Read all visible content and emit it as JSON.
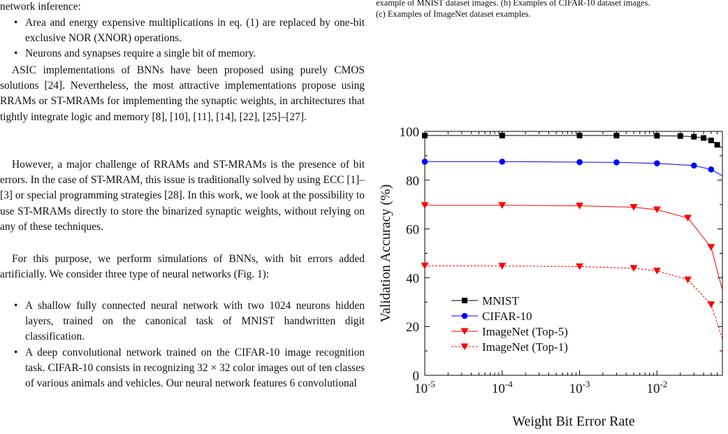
{
  "left_column": {
    "intro_tail": "network inference:",
    "bullets_1": [
      "Area and energy expensive multiplications in eq. (1) are replaced by one-bit exclusive NOR (XNOR) operations.",
      "Neurons and synapses require a single bit of memory."
    ],
    "para_asic": "ASIC implementations of BNNs have been proposed using purely CMOS solutions [24]. Nevertheless, the most attractive implementations propose using RRAMs or ST-MRAMs for implementing the synaptic weights, in architectures that tightly integrate logic and memory [8], [10], [11], [14], [22], [25]–[27].",
    "para_challenge": "However, a major challenge of RRAMs and ST-MRAMs is the presence of bit errors. In the case of ST-MRAM, this issue is traditionally solved by using ECC [1]–[3] or special programming strategies [28]. In this work, we look at the possibility to use ST-MRAMs directly to store the binarized synaptic weights, without relying on any of these techniques.",
    "para_purpose": "For this purpose, we perform simulations of BNNs, with bit errors added artificially. We consider three type of neural networks (Fig. 1):",
    "bullets_2": [
      "A shallow fully connected neural network with two 1024 neurons hidden layers, trained on the canonical task of MNIST handwritten digit classification.",
      "A deep convolutional network trained on the CIFAR-10 image recognition task. CIFAR-10 consists in recognizing 32 × 32 color images out of ten classes of various animals and vehicles. Our neural network features 6 convolutional"
    ]
  },
  "right_column": {
    "caption_line1": "example of MNIST dataset images. (b) Examples of CIFAR-10 dataset images.",
    "caption_line2": "(c) Examples of ImageNet dataset examples."
  },
  "chart_data": {
    "type": "line",
    "xlabel": "Weight Bit Error Rate",
    "ylabel": "Validation Accuracy (%)",
    "xscale": "log",
    "xlim": [
      1e-05,
      0.07
    ],
    "ylim": [
      0,
      100
    ],
    "x_ticks": [
      {
        "base": "10",
        "exp": "-5",
        "value": 1e-05
      },
      {
        "base": "10",
        "exp": "-4",
        "value": 0.0001
      },
      {
        "base": "10",
        "exp": "-3",
        "value": 0.001
      },
      {
        "base": "10",
        "exp": "-2",
        "value": 0.01
      }
    ],
    "y_ticks": [
      "0",
      "20",
      "40",
      "60",
      "80",
      "100"
    ],
    "legend_position": "bottom-left",
    "series": [
      {
        "name": "MNIST",
        "color": "#000000",
        "marker": "square",
        "dashed": false,
        "x": [
          1e-05,
          0.0001,
          0.001,
          0.003,
          0.01,
          0.02,
          0.03,
          0.04,
          0.05,
          0.06
        ],
        "y": [
          98.3,
          98.3,
          98.3,
          98.3,
          98.2,
          98.1,
          97.8,
          97.3,
          96.3,
          94.5
        ],
        "tail": {
          "x": 0.07,
          "y": 93.2
        }
      },
      {
        "name": "CIFAR-10",
        "color": "#0000ff",
        "marker": "circle",
        "dashed": false,
        "x": [
          1e-05,
          0.0001,
          0.001,
          0.003,
          0.01,
          0.03,
          0.05
        ],
        "y": [
          87.6,
          87.6,
          87.4,
          87.3,
          86.9,
          86.0,
          84.4
        ],
        "tail": {
          "x": 0.07,
          "y": 81.8
        }
      },
      {
        "name": "ImageNet (Top-5)",
        "color": "#ff0000",
        "marker": "triangle-down",
        "dashed": false,
        "x": [
          1e-05,
          0.0001,
          0.001,
          0.005,
          0.01,
          0.025,
          0.05
        ],
        "y": [
          69.7,
          69.7,
          69.5,
          68.9,
          67.9,
          64.5,
          52.5
        ],
        "tail": {
          "x": 0.07,
          "y": 35
        }
      },
      {
        "name": "ImageNet (Top-1)",
        "color": "#ff0000",
        "marker": "triangle-down",
        "dashed": true,
        "x": [
          1e-05,
          0.0001,
          0.001,
          0.005,
          0.01,
          0.025,
          0.05
        ],
        "y": [
          44.9,
          44.8,
          44.6,
          43.9,
          42.8,
          39.2,
          29.0
        ],
        "tail": {
          "x": 0.07,
          "y": 15
        }
      }
    ]
  }
}
